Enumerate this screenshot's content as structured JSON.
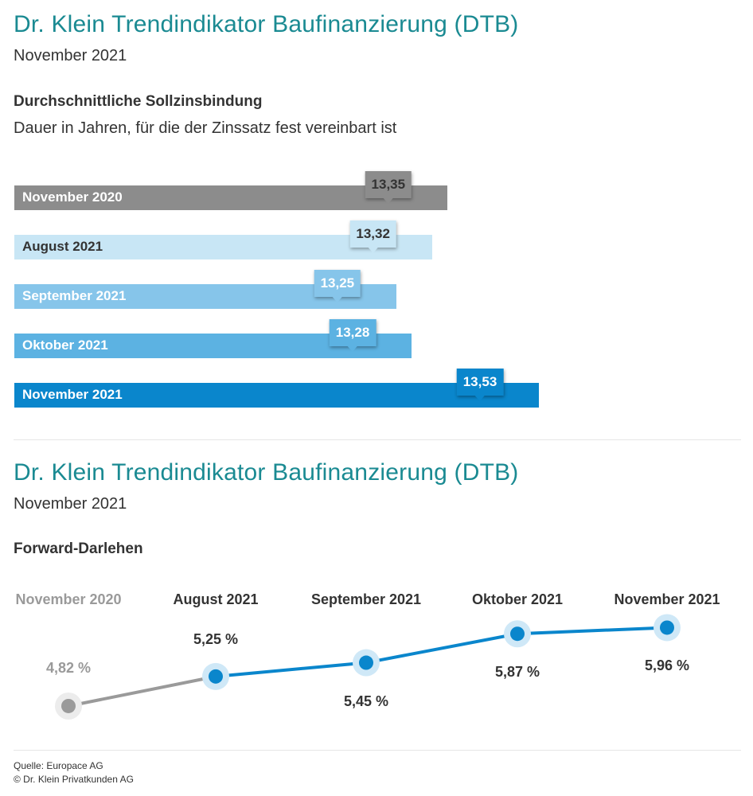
{
  "top": {
    "title": "Dr. Klein Trendindikator Baufinanzierung (DTB)",
    "subtitle": "November 2021",
    "heading": "Durchschnittliche Sollzinsbindung",
    "description": "Dauer in Jahren, für die der Zinssatz fest vereinbart ist"
  },
  "bottom": {
    "title": "Dr. Klein Trendindikator Baufinanzierung (DTB)",
    "subtitle": "November 2021",
    "heading": "Forward-Darlehen"
  },
  "footer": {
    "source": "Quelle: Europace AG",
    "copyright": "© Dr. Klein Privatkunden AG"
  },
  "chart_data": [
    {
      "type": "bar",
      "orientation": "horizontal",
      "categories": [
        "November 2020",
        "August 2021",
        "September 2021",
        "Oktober 2021",
        "November 2021"
      ],
      "values": [
        13.35,
        13.32,
        13.25,
        13.28,
        13.53
      ],
      "value_labels": [
        "13,35",
        "13,32",
        "13,25",
        "13,28",
        "13,53"
      ],
      "bar_colors": [
        "#8c8c8c",
        "#c8e6f5",
        "#86c5ea",
        "#5cb2e2",
        "#0a86cc"
      ],
      "tag_colors": [
        "#8c8c8c",
        "#c8e6f5",
        "#86c5ea",
        "#5cb2e2",
        "#0a86cc"
      ],
      "label_colors": [
        "#ffffff",
        "#333333",
        "#ffffff",
        "#ffffff",
        "#ffffff"
      ],
      "tag_text_colors": [
        "#333333",
        "#333333",
        "#ffffff",
        "#ffffff",
        "#ffffff"
      ],
      "xlim": [
        12.5,
        13.65
      ],
      "grid": false
    },
    {
      "type": "line",
      "categories": [
        "November 2020",
        "August 2021",
        "September 2021",
        "Oktober 2021",
        "November 2021"
      ],
      "values": [
        4.82,
        5.25,
        5.45,
        5.87,
        5.96
      ],
      "value_labels": [
        "4,82 %",
        "5,25 %",
        "5,45 %",
        "5,87 %",
        "5,96 %"
      ],
      "label_position": [
        "above",
        "above",
        "below",
        "below",
        "below"
      ],
      "ylim": [
        4.6,
        6.0
      ],
      "colors": {
        "past": "#9a9a9a",
        "current": "#0a86cc",
        "halo_past": "#ececec",
        "halo_current": "#cfe8f7"
      },
      "category_colors": [
        "#9a9a9a",
        "#333333",
        "#333333",
        "#333333",
        "#333333"
      ],
      "grid": false
    }
  ]
}
